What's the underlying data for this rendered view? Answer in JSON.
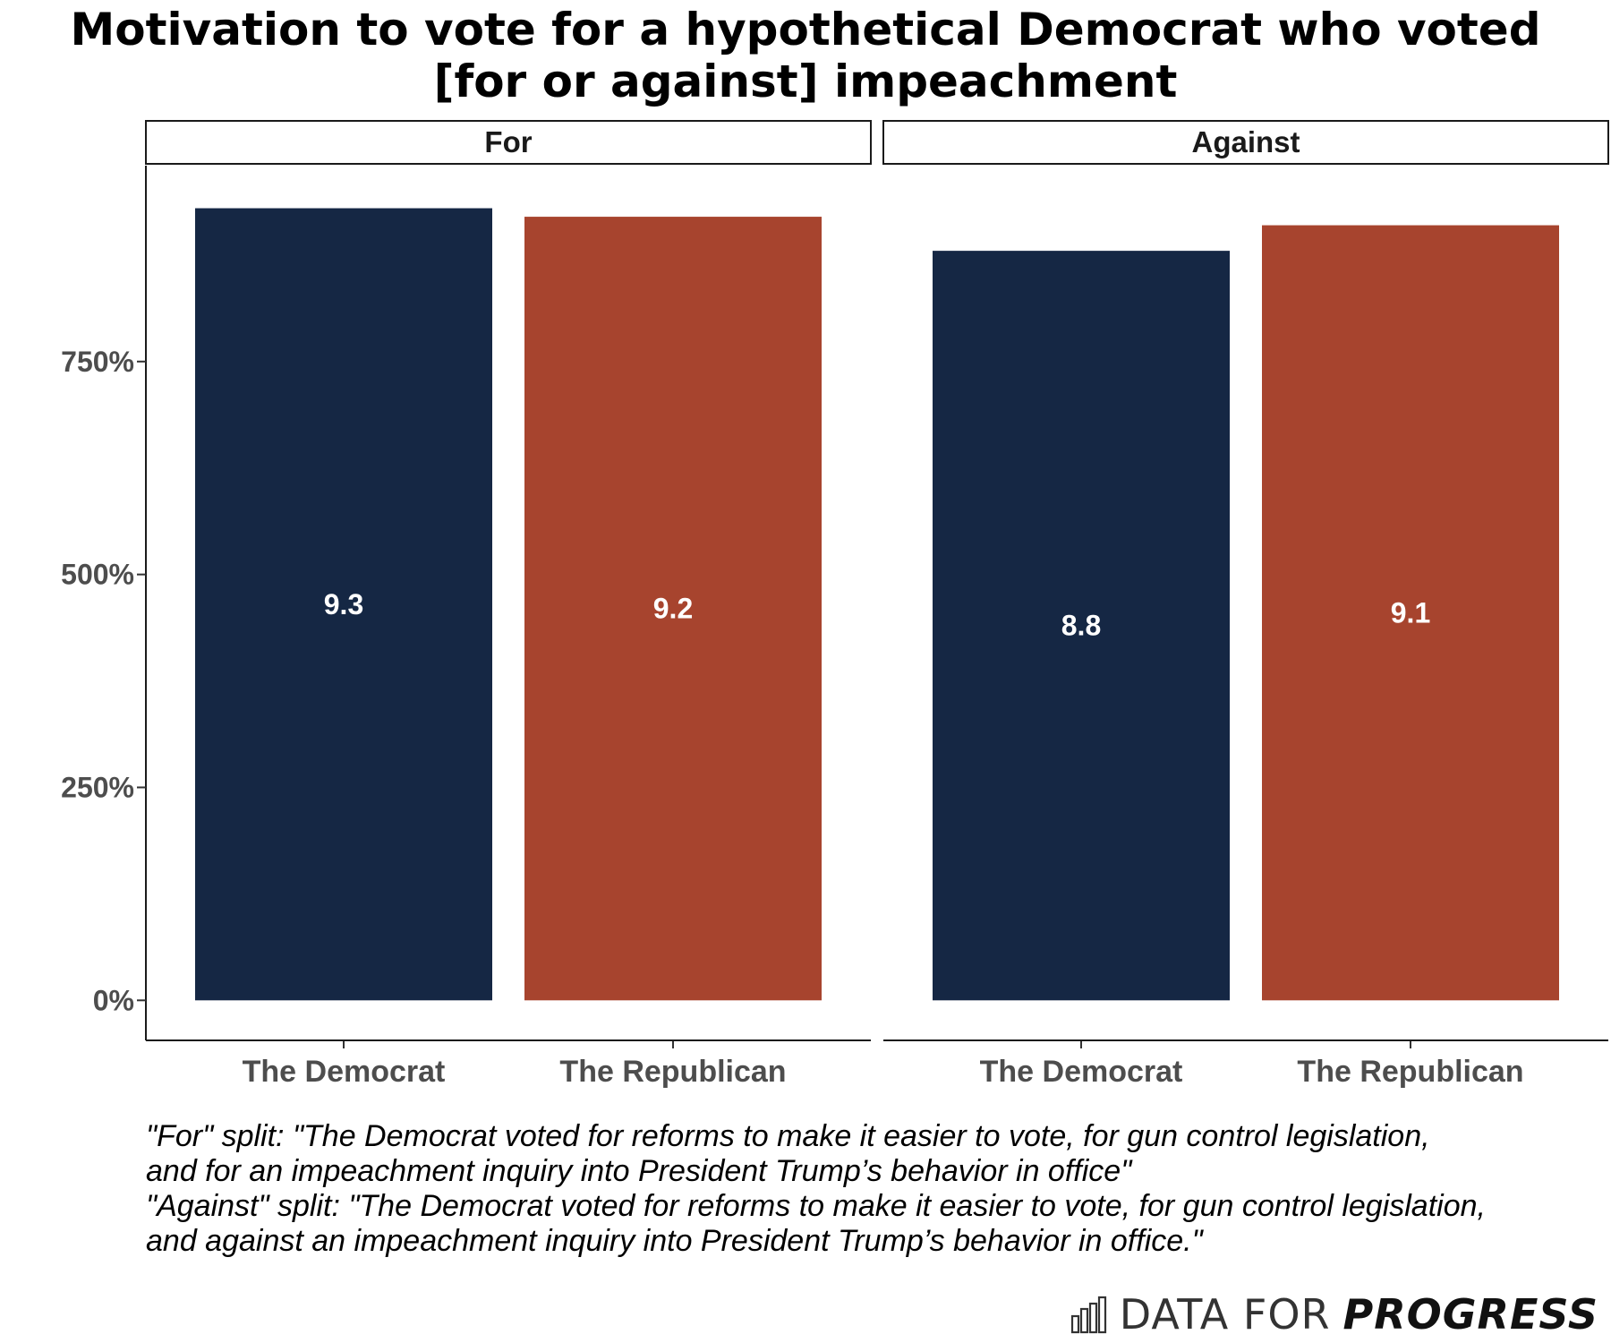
{
  "chart_data": {
    "type": "bar",
    "title_lines": [
      "Motivation to vote for a hypothetical Democrat who voted",
      "[for or against] impeachment"
    ],
    "facets": [
      "For",
      "Against"
    ],
    "categories": [
      "The Democrat",
      "The Republican"
    ],
    "series": [
      {
        "facet": "For",
        "values": [
          9.3,
          9.2
        ],
        "labels": [
          "9.3",
          "9.2"
        ]
      },
      {
        "facet": "Against",
        "values": [
          8.8,
          9.1
        ],
        "labels": [
          "8.8",
          "9.1"
        ]
      }
    ],
    "bar_colors": [
      "#152744",
      "#a7442e"
    ],
    "y_ticks": [
      0,
      2.5,
      5,
      7.5
    ],
    "y_tick_labels": [
      "0%",
      "250%",
      "500%",
      "750%"
    ],
    "ylim": [
      -0.47,
      9.8
    ],
    "xlabel": "",
    "ylabel": "",
    "legend": "none",
    "grid": false
  },
  "caption": {
    "lines": [
      "\"For\" split: \"The Democrat voted for reforms to make it easier to vote, for gun control legislation,",
      "and for an impeachment inquiry into President Trump’s behavior in office\"",
      "\"Against\" split: \"The Democrat voted for reforms to make it easier to vote, for gun control legislation,",
      "and against an impeachment inquiry into President Trump’s behavior in office.\""
    ]
  },
  "logo": {
    "icon": "bar-chart-icon",
    "text_light": "DATA FOR",
    "text_bold": "PROGRESS"
  }
}
